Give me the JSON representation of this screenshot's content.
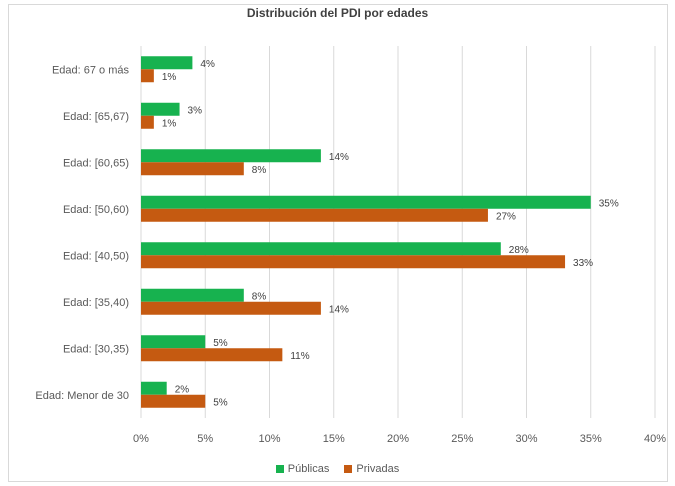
{
  "chart_data": {
    "type": "bar",
    "orientation": "horizontal",
    "title": "Distribución del PDI por edades",
    "categories": [
      "Edad: 67 o más",
      "Edad: [65,67)",
      "Edad: [60,65)",
      "Edad: [50,60)",
      "Edad: [40,50)",
      "Edad: [35,40)",
      "Edad: [30,35)",
      "Edad: Menor de 30"
    ],
    "series": [
      {
        "name": "Públicas",
        "color": "#17b24f",
        "values": [
          4,
          3,
          14,
          35,
          28,
          8,
          5,
          2
        ],
        "labels": [
          "4%",
          "3%",
          "14%",
          "35%",
          "28%",
          "8%",
          "5%",
          "2%"
        ]
      },
      {
        "name": "Privadas",
        "color": "#c55a11",
        "values": [
          1,
          1,
          8,
          27,
          33,
          14,
          11,
          5
        ],
        "labels": [
          "1%",
          "1%",
          "8%",
          "27%",
          "33%",
          "14%",
          "11%",
          "5%"
        ]
      }
    ],
    "xlim": [
      0,
      40
    ],
    "xticks": [
      0,
      5,
      10,
      15,
      20,
      25,
      30,
      35,
      40
    ],
    "xtick_labels": [
      "0%",
      "5%",
      "10%",
      "15%",
      "20%",
      "25%",
      "30%",
      "35%",
      "40%"
    ],
    "grid": "vertical",
    "legend_position": "bottom"
  }
}
